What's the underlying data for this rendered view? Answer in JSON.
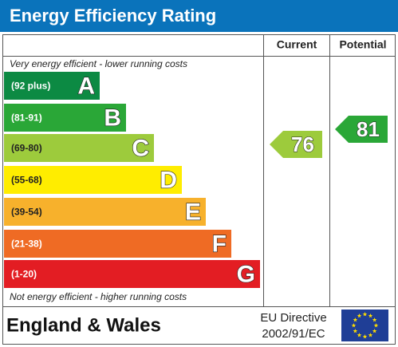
{
  "title": "Energy Efficiency Rating",
  "columns": [
    "Current",
    "Potential"
  ],
  "top_note": "Very energy efficient - lower running costs",
  "bands": [
    {
      "range": "(92 plus)",
      "letter": "A",
      "color": "#0c8a43",
      "text_color": "#ffffff"
    },
    {
      "range": "(81-91)",
      "letter": "B",
      "color": "#2aa737",
      "text_color": "#ffffff"
    },
    {
      "range": "(69-80)",
      "letter": "C",
      "color": "#9dcb3c",
      "text_color": "#222222"
    },
    {
      "range": "(55-68)",
      "letter": "D",
      "color": "#ffed00",
      "text_color": "#222222"
    },
    {
      "range": "(39-54)",
      "letter": "E",
      "color": "#f7b12c",
      "text_color": "#222222"
    },
    {
      "range": "(21-38)",
      "letter": "F",
      "color": "#ef6b24",
      "text_color": "#ffffff"
    },
    {
      "range": "(1-20)",
      "letter": "G",
      "color": "#e31d23",
      "text_color": "#ffffff"
    }
  ],
  "bottom_note": "Not energy efficient - higher running costs",
  "current": {
    "value": 76,
    "color": "#9dcb3c"
  },
  "potential": {
    "value": 81,
    "color": "#2aa737"
  },
  "footer": {
    "region": "England & Wales",
    "directive": [
      "EU Directive",
      "2002/91/EC"
    ]
  }
}
